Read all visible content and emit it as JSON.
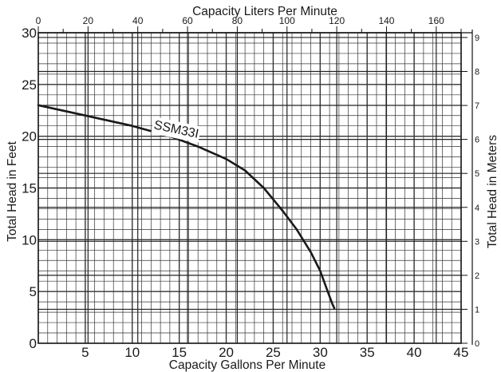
{
  "chart_data": {
    "type": "line",
    "xlabel": "Capacity Gallons Per Minute",
    "ylabel": "Total Head in Feet",
    "x2label": "Capacity Liters Per Minute",
    "y2label": "Total Head in Meters",
    "xlim": [
      0,
      45
    ],
    "ylim": [
      0,
      30
    ],
    "x2lim": [
      0,
      170
    ],
    "y2lim": [
      0,
      9.14
    ],
    "x_ticks": [
      "5",
      "10",
      "15",
      "20",
      "25",
      "30",
      "35",
      "40",
      "45"
    ],
    "y_ticks": [
      "0",
      "5",
      "10",
      "15",
      "20",
      "25",
      "30"
    ],
    "x2_ticks": [
      "0",
      "20",
      "40",
      "60",
      "80",
      "100",
      "120",
      "140",
      "160"
    ],
    "y2_ticks": [
      "0",
      "1",
      "2",
      "3",
      "4",
      "5",
      "6",
      "7",
      "8",
      "9"
    ],
    "grid": true,
    "series": [
      {
        "name": "SSM33I",
        "color": "#1a1a1a",
        "x": [
          0,
          5,
          10,
          14,
          17,
          20,
          22,
          24,
          26,
          27.5,
          29,
          30,
          30.8,
          31.3,
          31.5
        ],
        "y": [
          23,
          22,
          21,
          20,
          19,
          17.8,
          16.7,
          15,
          12.8,
          11,
          8.8,
          7,
          5,
          3.8,
          3.4
        ]
      }
    ]
  }
}
